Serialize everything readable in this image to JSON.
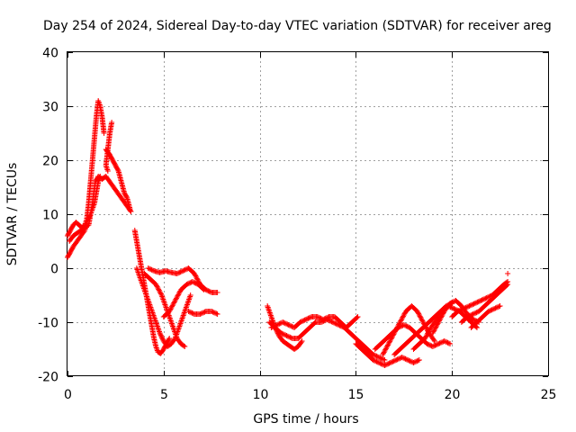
{
  "chart_data": {
    "type": "scatter",
    "title": "Day 254 of 2024, Sidereal Day-to-day VTEC variation (SDTVAR) for receiver areg",
    "xlabel": "GPS time / hours",
    "ylabel": "SDTVAR / TECUs",
    "xlim": [
      0,
      25
    ],
    "ylim": [
      -20,
      40
    ],
    "xticks": [
      0,
      5,
      10,
      15,
      20,
      25
    ],
    "yticks": [
      -20,
      -10,
      0,
      10,
      20,
      30,
      40
    ],
    "xtick_labels": [
      "0",
      "5",
      "10",
      "15",
      "20",
      "25"
    ],
    "ytick_labels": [
      "-20",
      "-10",
      "0",
      "10",
      "20",
      "30",
      "40"
    ],
    "grid": true,
    "marker": "+",
    "color": "#ff0000",
    "series": [
      {
        "name": "SDTVAR",
        "tracks": [
          [
            [
              0.0,
              6
            ],
            [
              0.15,
              7
            ],
            [
              0.3,
              8
            ],
            [
              0.45,
              8.5
            ],
            [
              0.6,
              8
            ],
            [
              0.75,
              7.5
            ],
            [
              0.9,
              8
            ],
            [
              1.0,
              9
            ],
            [
              1.1,
              12
            ],
            [
              1.2,
              16
            ],
            [
              1.35,
              22
            ],
            [
              1.5,
              28
            ],
            [
              1.6,
              31
            ],
            [
              1.7,
              30
            ],
            [
              1.8,
              28
            ],
            [
              1.9,
              25
            ]
          ],
          [
            [
              0.0,
              2
            ],
            [
              0.15,
              3
            ],
            [
              0.3,
              4
            ],
            [
              0.5,
              5
            ],
            [
              0.7,
              6
            ],
            [
              0.9,
              7
            ],
            [
              1.05,
              9
            ],
            [
              1.2,
              10
            ],
            [
              1.3,
              11
            ],
            [
              1.4,
              12
            ],
            [
              1.5,
              14
            ],
            [
              1.6,
              16
            ],
            [
              1.7,
              17
            ]
          ],
          [
            [
              0.1,
              5
            ],
            [
              0.3,
              6
            ],
            [
              0.5,
              6.5
            ],
            [
              0.7,
              7
            ],
            [
              0.9,
              7.5
            ],
            [
              1.1,
              8
            ],
            [
              1.3,
              12
            ],
            [
              1.45,
              16
            ],
            [
              1.6,
              17
            ],
            [
              1.8,
              16.5
            ],
            [
              2.0,
              17
            ],
            [
              2.2,
              16
            ],
            [
              2.4,
              15
            ],
            [
              2.6,
              14
            ],
            [
              2.8,
              13
            ],
            [
              3.0,
              12
            ],
            [
              3.2,
              11
            ],
            [
              3.3,
              10.5
            ]
          ],
          [
            [
              2.0,
              22
            ],
            [
              2.1,
              21.5
            ],
            [
              2.2,
              21
            ],
            [
              2.35,
              20
            ],
            [
              2.5,
              19
            ],
            [
              2.65,
              18
            ],
            [
              2.8,
              16
            ],
            [
              2.95,
              14
            ],
            [
              3.1,
              13
            ],
            [
              3.25,
              11
            ]
          ],
          [
            [
              2.3,
              27
            ],
            [
              2.2,
              25
            ],
            [
              2.1,
              22
            ],
            [
              2.0,
              19
            ],
            [
              2.1,
              18
            ]
          ],
          [
            [
              3.5,
              7
            ],
            [
              3.6,
              5
            ],
            [
              3.7,
              3
            ],
            [
              3.8,
              1
            ],
            [
              3.9,
              -1
            ],
            [
              4.0,
              -3
            ],
            [
              4.1,
              -5
            ],
            [
              4.2,
              -7
            ],
            [
              4.3,
              -9
            ],
            [
              4.4,
              -11
            ],
            [
              4.5,
              -13
            ],
            [
              4.6,
              -14.5
            ],
            [
              4.7,
              -15.5
            ],
            [
              4.85,
              -15.8
            ],
            [
              5.0,
              -15
            ],
            [
              5.15,
              -14
            ],
            [
              5.3,
              -13
            ]
          ],
          [
            [
              3.6,
              0
            ],
            [
              3.8,
              -2
            ],
            [
              4.0,
              -4
            ],
            [
              4.2,
              -6
            ],
            [
              4.4,
              -8
            ],
            [
              4.6,
              -10
            ],
            [
              4.8,
              -12
            ],
            [
              5.0,
              -13.5
            ],
            [
              5.2,
              -14.5
            ],
            [
              5.4,
              -14
            ],
            [
              5.6,
              -13
            ],
            [
              5.8,
              -11
            ],
            [
              6.0,
              -9
            ],
            [
              6.2,
              -7
            ],
            [
              6.4,
              -5
            ]
          ],
          [
            [
              4.0,
              -1
            ],
            [
              4.3,
              -2
            ],
            [
              4.6,
              -3
            ],
            [
              4.9,
              -5
            ],
            [
              5.1,
              -7
            ],
            [
              5.3,
              -9
            ],
            [
              5.5,
              -11
            ],
            [
              5.7,
              -13
            ],
            [
              5.9,
              -14
            ],
            [
              6.1,
              -14.5
            ]
          ],
          [
            [
              4.2,
              0
            ],
            [
              4.5,
              -0.5
            ],
            [
              4.8,
              -0.8
            ],
            [
              5.1,
              -0.5
            ],
            [
              5.4,
              -0.8
            ],
            [
              5.7,
              -1
            ],
            [
              6.0,
              -0.5
            ],
            [
              6.3,
              0
            ],
            [
              6.6,
              -1
            ],
            [
              6.9,
              -3
            ],
            [
              7.2,
              -4
            ],
            [
              7.5,
              -4.5
            ],
            [
              7.8,
              -4.5
            ]
          ],
          [
            [
              5.0,
              -9
            ],
            [
              5.3,
              -8
            ],
            [
              5.6,
              -6
            ],
            [
              5.9,
              -4
            ],
            [
              6.2,
              -3
            ],
            [
              6.5,
              -2.5
            ],
            [
              6.8,
              -3
            ],
            [
              7.1,
              -4
            ]
          ],
          [
            [
              6.3,
              -8
            ],
            [
              6.6,
              -8.5
            ],
            [
              6.9,
              -8.5
            ],
            [
              7.2,
              -8
            ],
            [
              7.5,
              -8
            ],
            [
              7.8,
              -8.5
            ]
          ],
          [
            [
              10.4,
              -7
            ],
            [
              10.6,
              -9
            ],
            [
              10.8,
              -11
            ],
            [
              11.0,
              -12.5
            ],
            [
              11.2,
              -13.5
            ],
            [
              11.4,
              -14
            ],
            [
              11.6,
              -14.5
            ],
            [
              11.8,
              -15
            ],
            [
              12.0,
              -14.5
            ],
            [
              12.2,
              -13.5
            ]
          ],
          [
            [
              10.5,
              -10
            ],
            [
              10.8,
              -11
            ],
            [
              11.1,
              -12
            ],
            [
              11.4,
              -12.5
            ],
            [
              11.7,
              -13
            ],
            [
              12.0,
              -13
            ],
            [
              12.3,
              -12
            ],
            [
              12.6,
              -11
            ],
            [
              12.9,
              -10
            ],
            [
              13.2,
              -10
            ],
            [
              13.5,
              -9.5
            ],
            [
              13.8,
              -10
            ],
            [
              14.1,
              -10.5
            ],
            [
              14.4,
              -11
            ],
            [
              14.7,
              -12
            ],
            [
              15.0,
              -13
            ],
            [
              15.3,
              -14
            ],
            [
              15.6,
              -15
            ],
            [
              15.9,
              -16
            ],
            [
              16.2,
              -16.5
            ],
            [
              16.5,
              -17
            ]
          ],
          [
            [
              10.6,
              -11
            ],
            [
              10.9,
              -10.5
            ],
            [
              11.2,
              -10
            ],
            [
              11.5,
              -10.5
            ],
            [
              11.8,
              -11
            ],
            [
              12.1,
              -10
            ],
            [
              12.4,
              -9.5
            ],
            [
              12.7,
              -9
            ],
            [
              13.0,
              -9
            ],
            [
              13.3,
              -9.5
            ],
            [
              13.6,
              -9
            ],
            [
              13.9,
              -9
            ],
            [
              14.2,
              -10
            ],
            [
              14.5,
              -11
            ],
            [
              14.8,
              -10
            ],
            [
              15.1,
              -9
            ]
          ],
          [
            [
              15.0,
              -14
            ],
            [
              15.3,
              -15
            ],
            [
              15.6,
              -16
            ],
            [
              15.9,
              -17
            ],
            [
              16.2,
              -17.5
            ],
            [
              16.5,
              -18
            ],
            [
              16.8,
              -17.5
            ],
            [
              17.1,
              -17
            ],
            [
              17.4,
              -16.5
            ],
            [
              17.7,
              -17
            ],
            [
              18.0,
              -17.5
            ],
            [
              18.3,
              -17
            ]
          ],
          [
            [
              16.0,
              -15
            ],
            [
              16.3,
              -14
            ],
            [
              16.6,
              -13
            ],
            [
              16.9,
              -12
            ],
            [
              17.2,
              -11
            ],
            [
              17.5,
              -10.5
            ],
            [
              17.8,
              -11
            ],
            [
              18.1,
              -12
            ],
            [
              18.4,
              -13
            ],
            [
              18.7,
              -14
            ],
            [
              19.0,
              -14.5
            ],
            [
              19.3,
              -14
            ],
            [
              19.6,
              -13.5
            ],
            [
              19.9,
              -14
            ]
          ],
          [
            [
              16.4,
              -16
            ],
            [
              16.7,
              -14
            ],
            [
              17.0,
              -12
            ],
            [
              17.3,
              -10
            ],
            [
              17.6,
              -8
            ],
            [
              17.9,
              -7
            ],
            [
              18.2,
              -8
            ],
            [
              18.5,
              -10
            ],
            [
              18.8,
              -12
            ],
            [
              19.1,
              -13.5
            ]
          ],
          [
            [
              17.0,
              -16
            ],
            [
              17.3,
              -15
            ],
            [
              17.6,
              -14
            ],
            [
              17.9,
              -13
            ],
            [
              18.2,
              -12
            ],
            [
              18.5,
              -11
            ],
            [
              18.8,
              -10
            ],
            [
              19.1,
              -9
            ],
            [
              19.4,
              -8
            ],
            [
              19.7,
              -7
            ],
            [
              20.0,
              -6.5
            ]
          ],
          [
            [
              18.0,
              -15
            ],
            [
              18.3,
              -14
            ],
            [
              18.6,
              -13
            ],
            [
              18.9,
              -11
            ],
            [
              19.2,
              -9.5
            ],
            [
              19.5,
              -8
            ],
            [
              19.8,
              -7
            ],
            [
              20.1,
              -7.5
            ],
            [
              20.4,
              -8
            ],
            [
              20.7,
              -9
            ],
            [
              21.0,
              -10
            ],
            [
              21.3,
              -11
            ]
          ],
          [
            [
              19.0,
              -12
            ],
            [
              19.3,
              -10
            ],
            [
              19.6,
              -8
            ],
            [
              19.9,
              -6.5
            ],
            [
              20.2,
              -6
            ],
            [
              20.5,
              -7
            ],
            [
              20.8,
              -8.5
            ],
            [
              21.1,
              -9.5
            ],
            [
              21.4,
              -10
            ]
          ],
          [
            [
              20.0,
              -9
            ],
            [
              20.3,
              -8
            ],
            [
              20.6,
              -7.5
            ],
            [
              20.9,
              -7
            ],
            [
              21.2,
              -6.5
            ],
            [
              21.5,
              -6
            ],
            [
              21.8,
              -5.5
            ],
            [
              22.1,
              -5
            ],
            [
              22.4,
              -4
            ],
            [
              22.7,
              -3
            ],
            [
              22.9,
              -2.5
            ]
          ],
          [
            [
              20.5,
              -10
            ],
            [
              20.8,
              -9
            ],
            [
              21.1,
              -8.5
            ],
            [
              21.4,
              -8
            ],
            [
              21.7,
              -7
            ],
            [
              22.0,
              -6
            ],
            [
              22.3,
              -5
            ],
            [
              22.6,
              -4
            ],
            [
              22.9,
              -3
            ]
          ],
          [
            [
              21.0,
              -11
            ],
            [
              21.3,
              -10
            ],
            [
              21.6,
              -9
            ],
            [
              21.9,
              -8
            ],
            [
              22.2,
              -7.5
            ],
            [
              22.5,
              -7
            ]
          ],
          [
            [
              22.9,
              -1
            ]
          ]
        ]
      }
    ]
  }
}
